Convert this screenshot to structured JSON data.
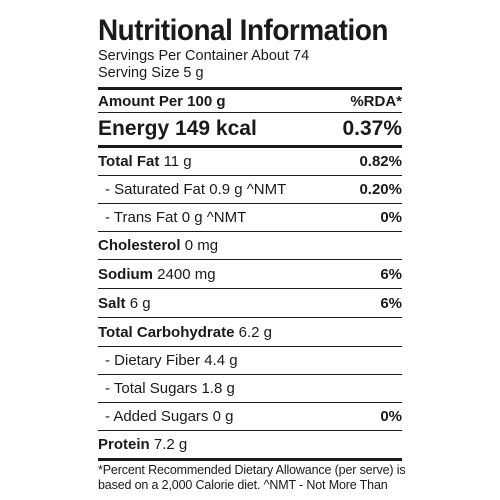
{
  "title": "Nutritional Information",
  "servings_per_container": "Servings Per Container About 74",
  "serving_size": "Serving Size 5 g",
  "header": {
    "left": "Amount Per 100 g",
    "right": "%RDA*"
  },
  "energy": {
    "label": "Energy",
    "amount": "149 kcal",
    "rda": "0.37%"
  },
  "rows": {
    "total_fat": {
      "label": "Total Fat",
      "amount": "11 g",
      "rda": "0.82%"
    },
    "saturated_fat": {
      "label": "- Saturated Fat",
      "amount": "0.9 g ^NMT",
      "rda": "0.20%"
    },
    "trans_fat": {
      "label": "- Trans Fat",
      "amount": "0 g ^NMT",
      "rda": "0%"
    },
    "cholesterol": {
      "label": "Cholesterol",
      "amount": "0 mg",
      "rda": ""
    },
    "sodium": {
      "label": "Sodium",
      "amount": "2400 mg",
      "rda": "6%"
    },
    "salt": {
      "label": "Salt",
      "amount": "6 g",
      "rda": "6%"
    },
    "total_carbohydrate": {
      "label": "Total Carbohydrate",
      "amount": "6.2 g",
      "rda": ""
    },
    "dietary_fiber": {
      "label": "- Dietary Fiber",
      "amount": "4.4 g",
      "rda": ""
    },
    "total_sugars": {
      "label": "- Total Sugars",
      "amount": "1.8 g",
      "rda": ""
    },
    "added_sugars": {
      "label": "- Added Sugars",
      "amount": "0 g",
      "rda": "0%"
    },
    "protein": {
      "label": "Protein",
      "amount": "7.2 g",
      "rda": ""
    }
  },
  "footnote": {
    "line1": "*Percent Recommended Dietary Allowance (per serve) is",
    "line2": "based on a 2,000 Calorie diet. ^NMT - Not More Than"
  }
}
